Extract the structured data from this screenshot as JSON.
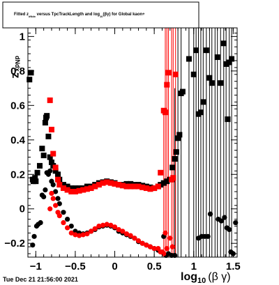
{
  "chart_data": {
    "type": "scatter",
    "title": "Fitted  z_{dNdx} versus TpcTrackLength and log_{10}(βγ) for Global kaon+",
    "title_parts": [
      "Fitted  z",
      "dNdx",
      " versus TpcTrackLength and log",
      "10",
      "(βγ) for Global kaon+"
    ],
    "xlabel_main": "log",
    "xlabel_sub": "10",
    "xlabel_tail": "(β γ)",
    "ylabel_main": "z",
    "ylabel_sub": "dNdx",
    "xlim": [
      -1.1,
      1.55
    ],
    "ylim": [
      -0.28,
      1.05
    ],
    "xticks": [
      -1,
      -0.5,
      0,
      0.5,
      1,
      1.5
    ],
    "xtick_labels": [
      "−1",
      "−0.5",
      "0",
      "0.5",
      "1",
      "1.5"
    ],
    "yticks": [
      -0.2,
      0,
      0.2,
      0.4,
      0.6,
      0.8,
      1
    ],
    "ytick_labels": [
      "−0.2",
      "0",
      "0.2",
      "0.4",
      "0.6",
      "0.8",
      "1"
    ],
    "footer": "Tue Dec 21 21:56:00 2021",
    "series": [
      {
        "color": "#000000",
        "marker": "square",
        "points": [
          [
            -1.08,
            0.75
          ],
          [
            -1.06,
            0.79
          ],
          [
            -1.04,
            0.17
          ],
          [
            -1.03,
            0.16
          ],
          [
            -1.02,
            0.17
          ],
          [
            -1.01,
            0.18
          ],
          [
            -1.0,
            0.16
          ],
          [
            -0.98,
            0.21
          ],
          [
            -0.95,
            0.25
          ],
          [
            -0.92,
            0.35
          ],
          [
            -0.9,
            0.31
          ],
          [
            -0.88,
            0.5
          ],
          [
            -0.87,
            0.53
          ],
          [
            -0.86,
            0.54
          ],
          [
            -0.84,
            0.42
          ],
          [
            -0.82,
            0.3
          ],
          [
            -0.8,
            0.27
          ],
          [
            -0.78,
            0.25
          ],
          [
            -0.75,
            0.22
          ],
          [
            -0.72,
            0.2
          ],
          [
            -0.7,
            0.17
          ],
          [
            -0.65,
            0.14
          ],
          [
            -0.6,
            0.13
          ],
          [
            -0.55,
            0.12
          ],
          [
            -0.5,
            0.12
          ],
          [
            -0.45,
            0.12
          ],
          [
            -0.4,
            0.12
          ],
          [
            -0.35,
            0.13
          ],
          [
            -0.3,
            0.13
          ],
          [
            -0.25,
            0.14
          ],
          [
            -0.2,
            0.15
          ],
          [
            -0.15,
            0.155
          ],
          [
            -0.1,
            0.16
          ],
          [
            -0.05,
            0.155
          ],
          [
            0.0,
            0.15
          ],
          [
            0.05,
            0.14
          ],
          [
            0.1,
            0.14
          ],
          [
            0.15,
            0.145
          ],
          [
            0.2,
            0.145
          ],
          [
            0.25,
            0.14
          ],
          [
            0.3,
            0.14
          ],
          [
            0.35,
            0.135
          ],
          [
            0.4,
            0.13
          ],
          [
            0.45,
            0.125
          ],
          [
            0.5,
            0.12
          ],
          [
            0.55,
            0.13
          ],
          [
            0.58,
            0.14
          ],
          [
            0.62,
            0.15
          ],
          [
            0.66,
            0.16
          ],
          [
            0.7,
            0.17
          ],
          [
            0.73,
            0.24
          ],
          [
            0.76,
            0.29
          ],
          [
            0.78,
            0.33
          ],
          [
            0.8,
            0.41
          ],
          [
            0.82,
            0.43
          ],
          [
            0.84,
            0.67
          ],
          [
            0.86,
            0.68
          ],
          [
            0.94,
            0.87
          ],
          [
            1.0,
            0.78
          ],
          [
            1.03,
            0.92
          ],
          [
            1.06,
            0.55
          ],
          [
            1.09,
            0.56
          ],
          [
            1.12,
            0.62
          ],
          [
            1.16,
            0.92
          ],
          [
            1.2,
            0.76
          ],
          [
            1.23,
            0.73
          ],
          [
            1.3,
            0.88
          ],
          [
            1.34,
            0.73
          ],
          [
            1.38,
            0.96
          ],
          [
            1.41,
            0.84
          ],
          [
            1.43,
            0.52
          ],
          [
            1.45,
            0.85
          ],
          [
            1.48,
            0.87
          ]
        ]
      },
      {
        "color": "#000000",
        "marker": "circle",
        "points": [
          [
            -1.04,
            -0.21
          ],
          [
            -1.02,
            -0.16
          ],
          [
            -0.99,
            -0.1
          ],
          [
            -0.97,
            -0.09
          ],
          [
            -0.94,
            -0.08
          ],
          [
            -0.92,
            0.08
          ],
          [
            -0.9,
            0.07
          ],
          [
            -0.88,
            0.11
          ],
          [
            -0.86,
            0.21
          ],
          [
            -0.84,
            0.2
          ],
          [
            -0.82,
            0.22
          ],
          [
            -0.8,
            0.16
          ],
          [
            -0.78,
            0.14
          ],
          [
            -0.75,
            0.1
          ],
          [
            -0.72,
            0.06
          ],
          [
            -0.7,
            0.03
          ],
          [
            -0.65,
            -0.02
          ],
          [
            -0.6,
            -0.06
          ],
          [
            -0.55,
            -0.1
          ],
          [
            -0.5,
            -0.13
          ],
          [
            -0.45,
            -0.14
          ],
          [
            -0.4,
            -0.145
          ],
          [
            -0.35,
            -0.14
          ],
          [
            -0.3,
            -0.13
          ],
          [
            -0.25,
            -0.12
          ],
          [
            -0.2,
            -0.105
          ],
          [
            -0.15,
            -0.1
          ],
          [
            -0.1,
            -0.095
          ],
          [
            -0.05,
            -0.1
          ],
          [
            0.0,
            -0.11
          ],
          [
            0.05,
            -0.13
          ],
          [
            0.1,
            -0.14
          ],
          [
            0.15,
            -0.15
          ],
          [
            0.2,
            -0.16
          ],
          [
            0.25,
            -0.17
          ],
          [
            0.3,
            -0.19
          ],
          [
            0.35,
            -0.2
          ],
          [
            0.4,
            -0.21
          ],
          [
            0.45,
            -0.22
          ],
          [
            0.5,
            -0.23
          ],
          [
            0.55,
            -0.24
          ],
          [
            0.6,
            -0.25
          ],
          [
            0.62,
            -0.16
          ],
          [
            0.65,
            -0.27
          ],
          [
            0.68,
            -0.26
          ],
          [
            0.72,
            -0.27
          ],
          [
            0.76,
            -0.27
          ],
          [
            1.06,
            -0.17
          ],
          [
            1.1,
            -0.16
          ],
          [
            1.14,
            -0.16
          ],
          [
            1.18,
            -0.16
          ],
          [
            1.21,
            -0.03
          ],
          [
            1.31,
            -0.06
          ],
          [
            1.35,
            -0.07
          ],
          [
            1.39,
            -0.05
          ],
          [
            1.42,
            -0.11
          ],
          [
            1.45,
            -0.12
          ],
          [
            1.47,
            -0.25
          ],
          [
            1.5,
            -0.26
          ],
          [
            1.53,
            -0.08
          ]
        ]
      },
      {
        "color": "#ff0000",
        "marker": "square",
        "points": [
          [
            -0.82,
            0.63
          ],
          [
            -0.8,
            0.46
          ],
          [
            -0.78,
            0.32
          ],
          [
            -0.75,
            0.24
          ],
          [
            -0.72,
            0.17
          ],
          [
            -0.7,
            0.14
          ],
          [
            -0.65,
            0.12
          ],
          [
            -0.6,
            0.11
          ],
          [
            -0.55,
            0.1
          ],
          [
            -0.5,
            0.1
          ],
          [
            -0.45,
            0.105
          ],
          [
            -0.4,
            0.11
          ],
          [
            -0.35,
            0.115
          ],
          [
            -0.3,
            0.12
          ],
          [
            -0.25,
            0.13
          ],
          [
            -0.2,
            0.14
          ],
          [
            -0.15,
            0.15
          ],
          [
            -0.1,
            0.155
          ],
          [
            -0.05,
            0.15
          ],
          [
            0.0,
            0.145
          ],
          [
            0.05,
            0.14
          ],
          [
            0.1,
            0.135
          ],
          [
            0.15,
            0.13
          ],
          [
            0.2,
            0.13
          ],
          [
            0.25,
            0.13
          ],
          [
            0.3,
            0.13
          ],
          [
            0.35,
            0.125
          ],
          [
            0.4,
            0.12
          ],
          [
            0.45,
            0.115
          ],
          [
            0.5,
            0.12
          ],
          [
            0.55,
            0.13
          ],
          [
            0.58,
            0.21
          ],
          [
            0.62,
            0.57
          ],
          [
            0.64,
            0.56
          ],
          [
            0.66,
            0.72
          ],
          [
            0.68,
            0.79
          ],
          [
            0.72,
            0.17
          ],
          [
            0.74,
            0.18
          ],
          [
            0.77,
            0.78
          ]
        ]
      },
      {
        "color": "#ff0000",
        "marker": "circle",
        "points": [
          [
            -0.82,
            0.0
          ],
          [
            -0.8,
            0.09
          ],
          [
            -0.78,
            0.06
          ],
          [
            -0.75,
            0.02
          ],
          [
            -0.72,
            -0.02
          ],
          [
            -0.7,
            -0.04
          ],
          [
            -0.65,
            -0.08
          ],
          [
            -0.6,
            -0.11
          ],
          [
            -0.55,
            -0.14
          ],
          [
            -0.5,
            -0.15
          ],
          [
            -0.45,
            -0.155
          ],
          [
            -0.4,
            -0.15
          ],
          [
            -0.35,
            -0.145
          ],
          [
            -0.3,
            -0.13
          ],
          [
            -0.25,
            -0.115
          ],
          [
            -0.2,
            -0.1
          ],
          [
            -0.15,
            -0.095
          ],
          [
            -0.1,
            -0.09
          ],
          [
            -0.05,
            -0.095
          ],
          [
            0.0,
            -0.105
          ],
          [
            0.05,
            -0.12
          ],
          [
            0.1,
            -0.13
          ],
          [
            0.15,
            -0.145
          ],
          [
            0.2,
            -0.155
          ],
          [
            0.25,
            -0.17
          ],
          [
            0.3,
            -0.185
          ],
          [
            0.35,
            -0.2
          ],
          [
            0.4,
            -0.21
          ],
          [
            0.45,
            -0.22
          ],
          [
            0.5,
            -0.23
          ],
          [
            0.55,
            -0.23
          ],
          [
            0.58,
            -0.25
          ],
          [
            0.6,
            -0.25
          ],
          [
            0.62,
            -0.26
          ],
          [
            0.64,
            -0.14
          ],
          [
            0.66,
            -0.23
          ],
          [
            0.7,
            -0.17
          ],
          [
            0.73,
            -0.22
          ]
        ]
      }
    ],
    "error_bars": [
      {
        "color": "#ff0000",
        "x": 0.62,
        "ylo": -0.28,
        "yhi": 0.57
      },
      {
        "color": "#ff0000",
        "x": 0.64,
        "ylo": -0.28,
        "yhi": 1.05
      },
      {
        "color": "#ff0000",
        "x": 0.66,
        "ylo": -0.28,
        "yhi": 1.05
      },
      {
        "color": "#ff0000",
        "x": 0.68,
        "ylo": -0.28,
        "yhi": 1.05
      },
      {
        "color": "#ff0000",
        "x": 0.72,
        "ylo": -0.28,
        "yhi": 1.05
      },
      {
        "color": "#ff0000",
        "x": 0.74,
        "ylo": -0.28,
        "yhi": 1.05
      },
      {
        "color": "#ff0000",
        "x": 0.77,
        "ylo": -0.28,
        "yhi": 1.05
      },
      {
        "color": "#000000",
        "x": 0.76,
        "ylo": -0.28,
        "yhi": 0.7
      },
      {
        "color": "#000000",
        "x": 0.8,
        "ylo": -0.28,
        "yhi": 1.05
      },
      {
        "color": "#000000",
        "x": 0.84,
        "ylo": -0.28,
        "yhi": 1.05
      },
      {
        "color": "#000000",
        "x": 0.94,
        "ylo": -0.28,
        "yhi": 1.05
      },
      {
        "color": "#000000",
        "x": 1.0,
        "ylo": -0.28,
        "yhi": 1.05
      },
      {
        "color": "#000000",
        "x": 1.03,
        "ylo": -0.28,
        "yhi": 1.05
      },
      {
        "color": "#000000",
        "x": 1.06,
        "ylo": -0.28,
        "yhi": 1.05
      },
      {
        "color": "#000000",
        "x": 1.09,
        "ylo": -0.28,
        "yhi": 1.05
      },
      {
        "color": "#000000",
        "x": 1.12,
        "ylo": -0.28,
        "yhi": 1.05
      },
      {
        "color": "#000000",
        "x": 1.16,
        "ylo": -0.28,
        "yhi": 1.05
      },
      {
        "color": "#000000",
        "x": 1.2,
        "ylo": -0.28,
        "yhi": 1.05
      },
      {
        "color": "#000000",
        "x": 1.23,
        "ylo": -0.28,
        "yhi": 1.05
      },
      {
        "color": "#000000",
        "x": 1.27,
        "ylo": -0.28,
        "yhi": 1.05
      },
      {
        "color": "#000000",
        "x": 1.3,
        "ylo": -0.28,
        "yhi": 1.05
      },
      {
        "color": "#000000",
        "x": 1.34,
        "ylo": -0.28,
        "yhi": 1.05
      },
      {
        "color": "#000000",
        "x": 1.38,
        "ylo": -0.28,
        "yhi": 1.05
      },
      {
        "color": "#000000",
        "x": 1.41,
        "ylo": -0.28,
        "yhi": 1.05
      },
      {
        "color": "#000000",
        "x": 1.45,
        "ylo": -0.28,
        "yhi": 1.05
      },
      {
        "color": "#000000",
        "x": 1.48,
        "ylo": -0.28,
        "yhi": 1.05
      }
    ]
  }
}
